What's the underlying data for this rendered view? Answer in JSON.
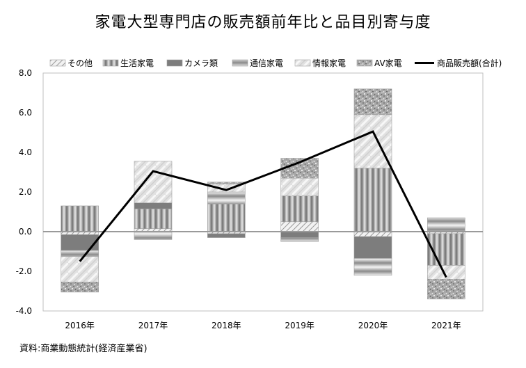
{
  "chart_data": {
    "type": "bar",
    "title": "家電大型専門店の販売額前年比と品目別寄与度",
    "source": "資料:商業動態統計(経済産業省)",
    "categories": [
      "2016年",
      "2017年",
      "2018年",
      "2019年",
      "2020年",
      "2021年"
    ],
    "ylim": [
      -4.0,
      8.0
    ],
    "yticks": [
      "8.0",
      "6.0",
      "4.0",
      "2.0",
      "0.0",
      "-2.0",
      "-4.0"
    ],
    "ytick_values": [
      8,
      6,
      4,
      2,
      0,
      -2,
      -4
    ],
    "grid": false,
    "legend_position": "top",
    "series": [
      {
        "name": "その他",
        "pattern": "pat-diag",
        "values": [
          -0.15,
          0.15,
          -0.1,
          0.5,
          -0.25,
          -0.1
        ]
      },
      {
        "name": "生活家電",
        "pattern": "pat-vstripe",
        "values": [
          1.3,
          1.0,
          1.4,
          1.3,
          3.2,
          -1.6
        ]
      },
      {
        "name": "カメラ類",
        "pattern": "pat-darkgray",
        "values": [
          -0.8,
          0.3,
          -0.2,
          -0.3,
          -1.1,
          0.0
        ]
      },
      {
        "name": "通信家電",
        "pattern": "pat-hgrad",
        "values": [
          -0.3,
          -0.4,
          0.6,
          -0.2,
          -0.85,
          0.7
        ]
      },
      {
        "name": "情報家電",
        "pattern": "pat-lightdiag",
        "values": [
          -1.3,
          2.1,
          0.4,
          0.9,
          2.7,
          -0.7
        ]
      },
      {
        "name": "AV家電",
        "pattern": "pat-speckle",
        "values": [
          -0.5,
          0.0,
          0.1,
          1.0,
          1.3,
          -1.0
        ]
      }
    ],
    "line_series": {
      "name": "商品販売額(合計)",
      "values": [
        -1.5,
        3.05,
        2.1,
        3.5,
        5.05,
        -2.3
      ]
    }
  }
}
